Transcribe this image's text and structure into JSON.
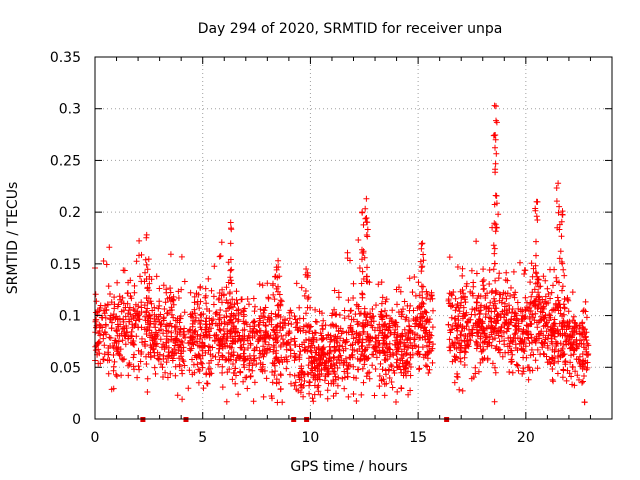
{
  "chart_data": {
    "type": "scatter",
    "title": "Day 294 of 2020, SRMTID for receiver unpa",
    "xlabel": "GPS time / hours",
    "ylabel": "SRMTID / TECUs",
    "xlim": [
      0,
      24
    ],
    "ylim": [
      0,
      0.35
    ],
    "grid": true,
    "marker": "+",
    "colors": {
      "points": "#ff0000",
      "gaps": "#dd0000",
      "grid": "#a0a0a0"
    },
    "x_ticks": [
      0,
      5,
      10,
      15,
      20
    ],
    "x_tick_labels": [
      "0",
      "5",
      "10",
      "15",
      "20"
    ],
    "y_ticks": [
      0,
      0.05,
      0.1,
      0.15,
      0.2,
      0.25,
      0.3,
      0.35
    ],
    "y_tick_labels": [
      "0",
      "0.05",
      "0.1",
      "0.15",
      "0.2",
      "0.25",
      "0.3",
      "0.35"
    ],
    "data_gap_markers_x": [
      2.2,
      4.2,
      9.2,
      9.8,
      16.3
    ],
    "data_segments": [
      {
        "x_start": 0.0,
        "x_end": 2.2
      },
      {
        "x_start": 2.3,
        "x_end": 4.2
      },
      {
        "x_start": 4.3,
        "x_end": 9.15
      },
      {
        "x_start": 9.25,
        "x_end": 9.75
      },
      {
        "x_start": 9.85,
        "x_end": 15.7
      },
      {
        "x_start": 16.4,
        "x_end": 22.9
      }
    ],
    "baseline_profile": [
      [
        0,
        0.085
      ],
      [
        1,
        0.08
      ],
      [
        2,
        0.09
      ],
      [
        3,
        0.085
      ],
      [
        4,
        0.08
      ],
      [
        5,
        0.08
      ],
      [
        6,
        0.085
      ],
      [
        7,
        0.07
      ],
      [
        8,
        0.075
      ],
      [
        9,
        0.07
      ],
      [
        10,
        0.06
      ],
      [
        11,
        0.06
      ],
      [
        12,
        0.075
      ],
      [
        13,
        0.075
      ],
      [
        14,
        0.07
      ],
      [
        15,
        0.085
      ],
      [
        16,
        0.085
      ],
      [
        17,
        0.09
      ],
      [
        18,
        0.095
      ],
      [
        19,
        0.085
      ],
      [
        20,
        0.09
      ],
      [
        21,
        0.09
      ],
      [
        22,
        0.075
      ],
      [
        23,
        0.07
      ]
    ],
    "point_count": 2600,
    "peaks": [
      {
        "x": 2.4,
        "y": 0.178
      },
      {
        "x": 6.3,
        "y": 0.19
      },
      {
        "x": 8.5,
        "y": 0.153
      },
      {
        "x": 9.8,
        "y": 0.145
      },
      {
        "x": 12.4,
        "y": 0.2
      },
      {
        "x": 12.6,
        "y": 0.213
      },
      {
        "x": 15.2,
        "y": 0.17
      },
      {
        "x": 18.55,
        "y": 0.303
      },
      {
        "x": 18.6,
        "y": 0.27
      },
      {
        "x": 20.5,
        "y": 0.21
      },
      {
        "x": 21.5,
        "y": 0.228
      },
      {
        "x": 21.7,
        "y": 0.201
      }
    ]
  }
}
